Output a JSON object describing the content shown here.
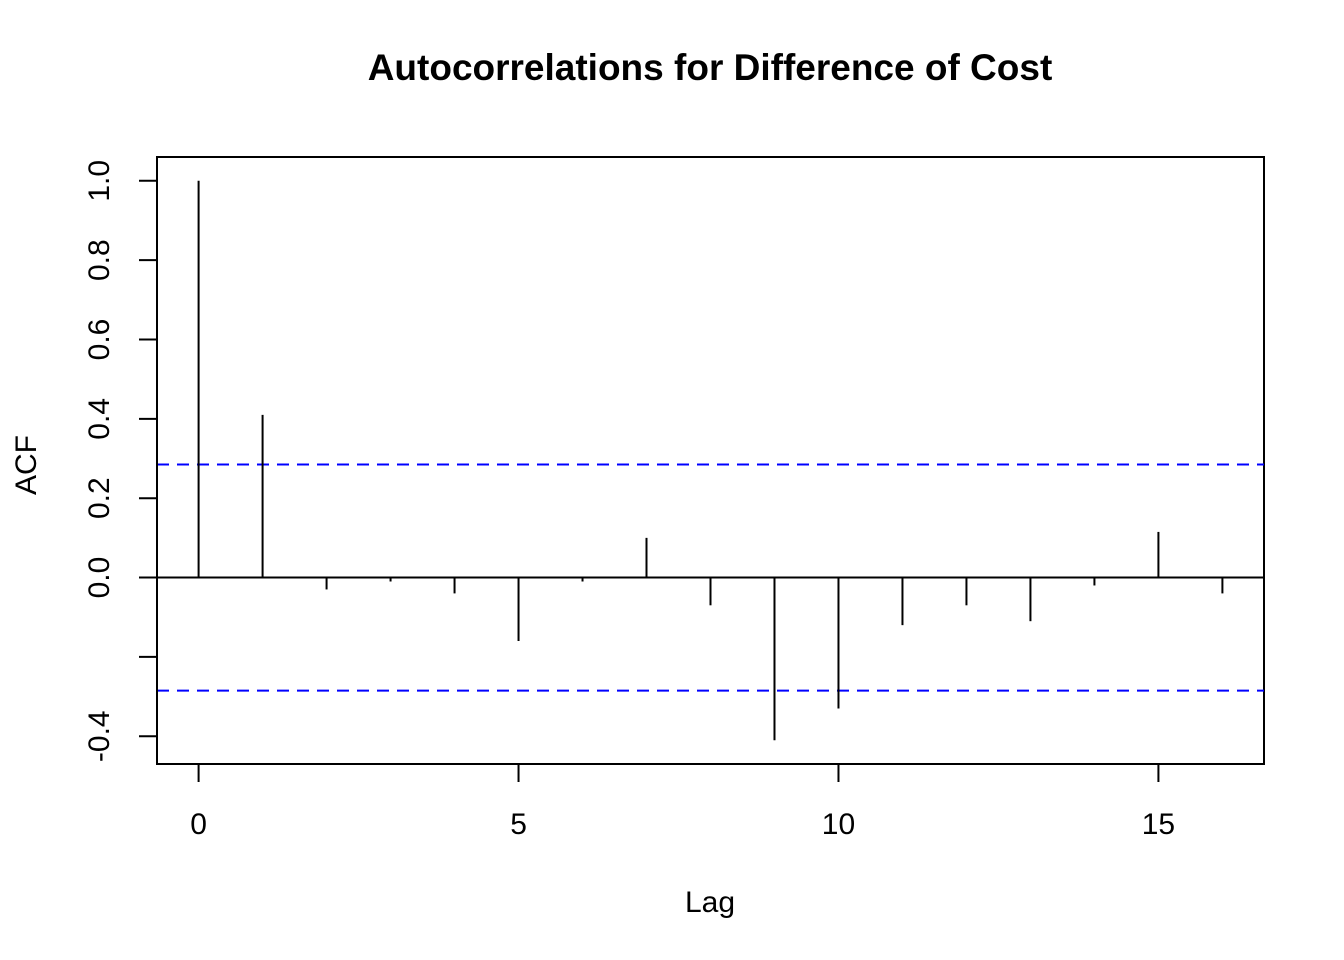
{
  "chart_data": {
    "type": "bar",
    "title": "Autocorrelations for Difference of Cost",
    "xlabel": "Lag",
    "ylabel": "ACF",
    "lags": [
      0,
      1,
      2,
      3,
      4,
      5,
      6,
      7,
      8,
      9,
      10,
      11,
      12,
      13,
      14,
      15,
      16
    ],
    "values": [
      1.0,
      0.41,
      -0.03,
      -0.01,
      -0.04,
      -0.16,
      -0.01,
      0.1,
      -0.07,
      -0.41,
      -0.33,
      -0.12,
      -0.07,
      -0.11,
      -0.02,
      0.115,
      -0.04
    ],
    "confidence_bound": 0.285,
    "confidence_color": "#0000ff",
    "bar_color": "#000000",
    "xlim": [
      -0.65,
      16.65
    ],
    "ylim": [
      -0.47,
      1.06
    ],
    "x_ticks": [
      0,
      5,
      10,
      15
    ],
    "x_tick_labels": [
      "0",
      "5",
      "10",
      "15"
    ],
    "y_ticks": [
      1.0,
      0.8,
      0.6,
      0.4,
      0.2,
      0.0,
      -0.2,
      -0.4
    ],
    "y_tick_labels": [
      "1.0",
      "0.8",
      "0.6",
      "0.4",
      "0.2",
      "0.0",
      "",
      "-0.4"
    ],
    "grid": false,
    "legend": "none"
  }
}
